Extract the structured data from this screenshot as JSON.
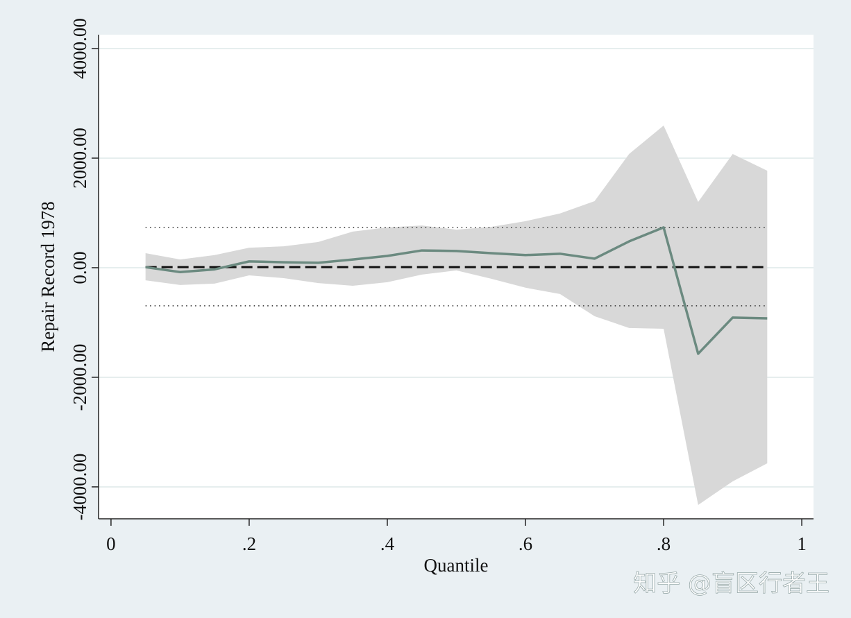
{
  "chart_data": {
    "type": "line",
    "y_label": "Repair Record 1978",
    "x_label": "Quantile",
    "watermark": "知乎 @盲区行者王",
    "x": [
      0.05,
      0.1,
      0.15,
      0.2,
      0.25,
      0.3,
      0.35,
      0.4,
      0.45,
      0.5,
      0.55,
      0.6,
      0.65,
      0.7,
      0.75,
      0.8,
      0.85,
      0.9,
      0.95
    ],
    "estimate": {
      "color": "#6b8a80",
      "values": [
        10,
        -80,
        -30,
        115,
        100,
        90,
        150,
        215,
        315,
        305,
        265,
        230,
        255,
        165,
        480,
        735,
        -1570,
        -910,
        -925
      ]
    },
    "band": {
      "color": "#d8d8d8",
      "lower": [
        -230,
        -315,
        -290,
        -140,
        -190,
        -280,
        -330,
        -265,
        -125,
        -50,
        -200,
        -365,
        -480,
        -885,
        -1100,
        -1115,
        -4330,
        -3900,
        -3570
      ],
      "upper": [
        265,
        150,
        230,
        365,
        390,
        470,
        660,
        735,
        770,
        695,
        745,
        850,
        990,
        1215,
        2075,
        2595,
        1200,
        2075,
        1770
      ]
    },
    "reference_lines": [
      {
        "value": 10,
        "style": "dashed",
        "color": "#111111"
      },
      {
        "value": 735,
        "style": "dotted",
        "color": "#444444"
      },
      {
        "value": -695,
        "style": "dotted",
        "color": "#444444"
      }
    ],
    "xlim": [
      -0.018,
      1.017
    ],
    "ylim": [
      -4583,
      4253
    ],
    "xticks": [
      0,
      {
        "value": 0.2,
        "label": ".2"
      },
      {
        "value": 0.4,
        "label": ".4"
      },
      {
        "value": 0.6,
        "label": ".6"
      },
      {
        "value": 0.8,
        "label": ".8"
      },
      1
    ],
    "yticks": [
      {
        "value": -4000,
        "label": "-4000.00"
      },
      {
        "value": -2000,
        "label": "-2000.00"
      },
      {
        "value": 0,
        "label": "0.00"
      },
      {
        "value": 2000,
        "label": "2000.00"
      },
      {
        "value": 4000,
        "label": "4000.00"
      }
    ],
    "grid": true
  }
}
